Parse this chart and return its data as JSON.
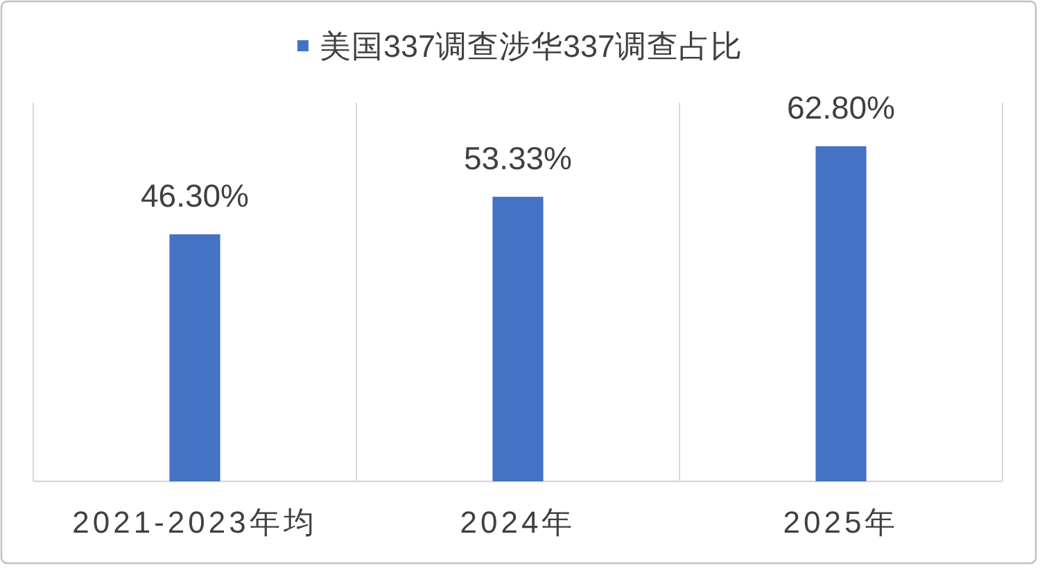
{
  "chart_data": {
    "type": "bar",
    "categories": [
      "2021-2023年均",
      "2024年",
      "2025年"
    ],
    "series": [
      {
        "name": "美国337调查涉华337调查占比",
        "color": "#4472c4",
        "values": [
          46.3,
          53.33,
          62.8
        ],
        "value_labels": [
          "46.30%",
          "53.33%",
          "62.80%"
        ]
      }
    ],
    "grid": "x",
    "legend": "top"
  }
}
